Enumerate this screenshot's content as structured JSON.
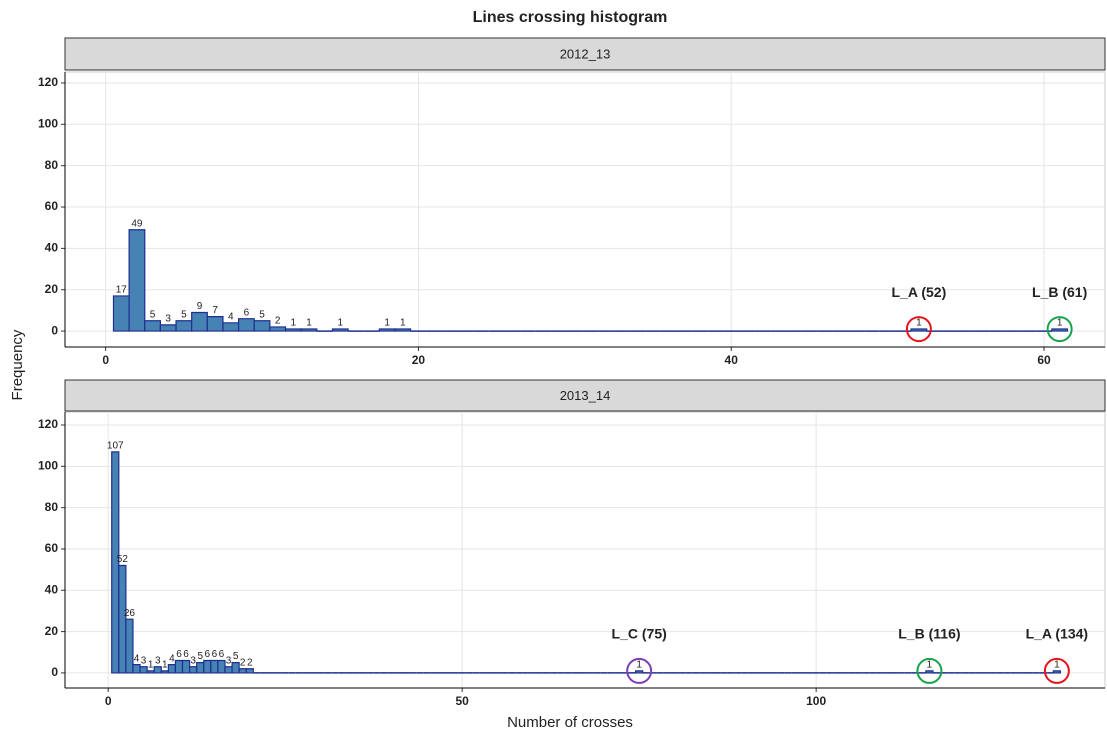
{
  "title": "Lines crossing histogram",
  "x_label": "Number of crosses",
  "y_label": "Frequency",
  "chart_data": [
    {
      "type": "histogram",
      "title": "2012_13",
      "color": "#4682b4",
      "edge_color": "#1f2f8f",
      "grid": true,
      "bins": [
        0.5,
        1.5,
        2.5,
        3.5,
        4.5,
        5.5,
        6.5,
        7.5,
        8.5,
        9.5,
        10.5,
        11.5,
        12.5,
        13.5,
        14.5,
        15.5,
        16.5,
        17.5,
        18.5,
        19.5,
        20.5,
        21.5,
        22.5,
        23.5,
        24.5,
        25.5,
        26.5,
        27.5,
        28.5,
        29.5,
        30.5,
        31.5,
        32.5,
        33.5,
        34.5,
        35.5,
        36.5,
        37.5,
        38.5,
        39.5,
        40.5,
        41.5,
        42.5,
        43.5,
        44.5,
        45.5,
        46.5,
        47.5,
        48.5,
        49.5,
        50.5,
        51.5,
        52.5,
        53.5,
        54.5,
        55.5,
        56.5,
        57.5,
        58.5,
        59.5,
        60.5,
        61.5
      ],
      "counts": [
        17,
        49,
        5,
        3,
        5,
        9,
        7,
        4,
        6,
        5,
        2,
        1,
        1,
        0,
        1,
        0,
        0,
        1,
        1,
        0,
        0,
        0,
        0,
        0,
        0,
        0,
        0,
        0,
        0,
        0,
        0,
        0,
        0,
        0,
        0,
        0,
        0,
        0,
        0,
        0,
        0,
        0,
        0,
        0,
        0,
        0,
        0,
        0,
        0,
        0,
        0,
        1,
        0,
        0,
        0,
        0,
        0,
        0,
        0,
        0,
        1
      ],
      "xlim": [
        -2.6,
        63.9
      ],
      "ylim": [
        -7.7,
        125.3
      ],
      "xticks": [
        0,
        20,
        40,
        60
      ],
      "yticks": [
        0,
        20,
        40,
        60,
        80,
        100,
        120
      ],
      "annotations": [
        {
          "text": "L_A (52)",
          "x": 52,
          "color": "#e8121b"
        },
        {
          "text": "L_B (61)",
          "x": 61,
          "color": "#17a34a"
        }
      ]
    },
    {
      "type": "histogram",
      "title": "2013_14",
      "color": "#4682b4",
      "edge_color": "#1f2f8f",
      "grid": true,
      "bins": [
        0.5,
        1.5,
        2.5,
        3.5,
        4.5,
        5.5,
        6.5,
        7.5,
        8.5,
        9.5,
        10.5,
        11.5,
        12.5,
        13.5,
        14.5,
        15.5,
        16.5,
        17.5,
        18.5,
        19.5,
        20.5,
        21.5,
        22.5,
        23.5,
        24.5,
        25.5,
        26.5,
        27.5,
        28.5,
        29.5,
        30.5,
        31.5,
        32.5,
        33.5,
        34.5,
        35.5,
        36.5,
        37.5,
        38.5,
        39.5,
        40.5,
        41.5,
        42.5,
        43.5,
        44.5,
        45.5,
        46.5,
        47.5,
        48.5,
        49.5,
        50.5,
        51.5,
        52.5,
        53.5,
        54.5,
        55.5,
        56.5,
        57.5,
        58.5,
        59.5,
        60.5,
        61.5,
        62.5,
        63.5,
        64.5,
        65.5,
        66.5,
        67.5,
        68.5,
        69.5,
        70.5,
        71.5,
        72.5,
        73.5,
        74.5,
        75.5,
        76.5,
        77.5,
        78.5,
        79.5,
        80.5,
        81.5,
        82.5,
        83.5,
        84.5,
        85.5,
        86.5,
        87.5,
        88.5,
        89.5,
        90.5,
        91.5,
        92.5,
        93.5,
        94.5,
        95.5,
        96.5,
        97.5,
        98.5,
        99.5,
        100.5,
        101.5,
        102.5,
        103.5,
        104.5,
        105.5,
        106.5,
        107.5,
        108.5,
        109.5,
        110.5,
        111.5,
        112.5,
        113.5,
        114.5,
        115.5,
        116.5,
        117.5,
        118.5,
        119.5,
        120.5,
        121.5,
        122.5,
        123.5,
        124.5,
        125.5,
        126.5,
        127.5,
        128.5,
        129.5,
        130.5,
        131.5,
        132.5,
        133.5,
        134.5
      ],
      "counts": [
        107,
        52,
        26,
        4,
        3,
        1,
        3,
        1,
        4,
        6,
        6,
        3,
        5,
        6,
        6,
        6,
        3,
        5,
        2,
        2,
        0,
        0,
        0,
        0,
        0,
        0,
        0,
        0,
        0,
        0,
        0,
        0,
        0,
        0,
        0,
        0,
        0,
        0,
        0,
        0,
        0,
        0,
        0,
        0,
        0,
        0,
        0,
        0,
        0,
        0,
        0,
        0,
        0,
        0,
        0,
        0,
        0,
        0,
        0,
        0,
        0,
        0,
        0,
        0,
        0,
        0,
        0,
        0,
        0,
        0,
        0,
        0,
        0,
        0,
        1,
        0,
        0,
        0,
        0,
        0,
        0,
        0,
        0,
        0,
        0,
        0,
        0,
        0,
        0,
        0,
        0,
        0,
        0,
        0,
        0,
        0,
        0,
        0,
        0,
        0,
        0,
        0,
        0,
        0,
        0,
        0,
        0,
        0,
        0,
        0,
        0,
        0,
        0,
        0,
        0,
        1,
        0,
        0,
        0,
        0,
        0,
        0,
        0,
        0,
        0,
        0,
        0,
        0,
        0,
        0,
        0,
        0,
        0,
        1
      ],
      "xlim": [
        -6.1,
        140.8
      ],
      "ylim": [
        -7.3,
        126.3
      ],
      "xticks": [
        0,
        50,
        100
      ],
      "yticks": [
        0,
        20,
        40,
        60,
        80,
        100,
        120
      ],
      "annotations": [
        {
          "text": "L_C (75)",
          "x": 75,
          "color": "#7b3fb5"
        },
        {
          "text": "L_B (116)",
          "x": 116,
          "color": "#17a34a"
        },
        {
          "text": "L_A (134)",
          "x": 134,
          "color": "#e8121b"
        }
      ]
    }
  ]
}
